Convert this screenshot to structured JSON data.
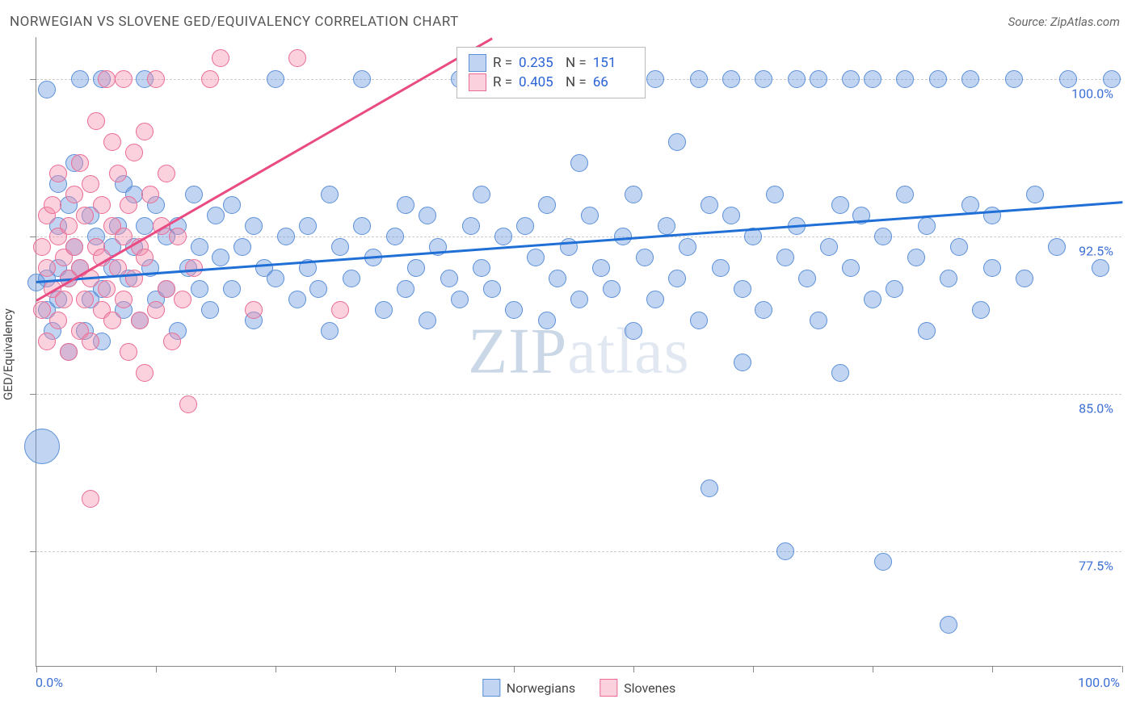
{
  "title": "NORWEGIAN VS SLOVENE GED/EQUIVALENCY CORRELATION CHART",
  "source": "Source: ZipAtlas.com",
  "watermark_a": "ZIP",
  "watermark_b": "atlas",
  "chart": {
    "type": "scatter",
    "xlim": [
      0,
      100
    ],
    "ylim": [
      72,
      102
    ],
    "x_label_min": "0.0%",
    "x_label_max": "100.0%",
    "y_axis_label": "GED/Equivalency",
    "y_ticks": [
      77.5,
      85.0,
      92.5,
      100.0
    ],
    "y_tick_labels": [
      "77.5%",
      "85.0%",
      "92.5%",
      "100.0%"
    ],
    "x_tick_positions": [
      0,
      11,
      22,
      33,
      44,
      55,
      66,
      77,
      88,
      100
    ],
    "grid_color": "#cccccc",
    "background_color": "#ffffff",
    "marker_radius": 11,
    "marker_radius_large": 22,
    "series": [
      {
        "name": "Norwegians",
        "color_fill": "rgba(99,151,224,0.40)",
        "color_stroke": "#5b8fd6",
        "trend_color": "#1f6fd6",
        "trend": {
          "x1": 0,
          "y1": 90.4,
          "x2": 100,
          "y2": 94.2
        },
        "R": "0.235",
        "N": "151",
        "points": [
          [
            0,
            90.3
          ],
          [
            0.5,
            82.5
          ],
          [
            1,
            99.5
          ],
          [
            1,
            90.5
          ],
          [
            1,
            89
          ],
          [
            1.5,
            88
          ],
          [
            2,
            95
          ],
          [
            2,
            91
          ],
          [
            2,
            89.5
          ],
          [
            2,
            93
          ],
          [
            3,
            87
          ],
          [
            3,
            90.5
          ],
          [
            3,
            94
          ],
          [
            3.5,
            92
          ],
          [
            3.5,
            96
          ],
          [
            4,
            100
          ],
          [
            4,
            91
          ],
          [
            4.5,
            88
          ],
          [
            5,
            93.5
          ],
          [
            5,
            89.5
          ],
          [
            5.5,
            92.5
          ],
          [
            6,
            100
          ],
          [
            6,
            90
          ],
          [
            6,
            87.5
          ],
          [
            7,
            92
          ],
          [
            7,
            91
          ],
          [
            7.5,
            93
          ],
          [
            8,
            95
          ],
          [
            8,
            89
          ],
          [
            8.5,
            90.5
          ],
          [
            9,
            94.5
          ],
          [
            9,
            92
          ],
          [
            9.5,
            88.5
          ],
          [
            10,
            93
          ],
          [
            10,
            100
          ],
          [
            10.5,
            91
          ],
          [
            11,
            89.5
          ],
          [
            11,
            94
          ],
          [
            12,
            92.5
          ],
          [
            12,
            90
          ],
          [
            13,
            93
          ],
          [
            13,
            88
          ],
          [
            14,
            91
          ],
          [
            14.5,
            94.5
          ],
          [
            15,
            90
          ],
          [
            15,
            92
          ],
          [
            16,
            89
          ],
          [
            16.5,
            93.5
          ],
          [
            17,
            91.5
          ],
          [
            18,
            90
          ],
          [
            18,
            94
          ],
          [
            19,
            92
          ],
          [
            20,
            88.5
          ],
          [
            20,
            93
          ],
          [
            21,
            91
          ],
          [
            22,
            100
          ],
          [
            22,
            90.5
          ],
          [
            23,
            92.5
          ],
          [
            24,
            89.5
          ],
          [
            25,
            93
          ],
          [
            25,
            91
          ],
          [
            26,
            90
          ],
          [
            27,
            94.5
          ],
          [
            27,
            88
          ],
          [
            28,
            92
          ],
          [
            29,
            90.5
          ],
          [
            30,
            93
          ],
          [
            30,
            100
          ],
          [
            31,
            91.5
          ],
          [
            32,
            89
          ],
          [
            33,
            92.5
          ],
          [
            34,
            90
          ],
          [
            34,
            94
          ],
          [
            35,
            91
          ],
          [
            36,
            88.5
          ],
          [
            36,
            93.5
          ],
          [
            37,
            92
          ],
          [
            38,
            90.5
          ],
          [
            39,
            100
          ],
          [
            39,
            89.5
          ],
          [
            40,
            93
          ],
          [
            41,
            91
          ],
          [
            41,
            94.5
          ],
          [
            42,
            90
          ],
          [
            43,
            92.5
          ],
          [
            44,
            89
          ],
          [
            45,
            93
          ],
          [
            45,
            100
          ],
          [
            46,
            91.5
          ],
          [
            47,
            88.5
          ],
          [
            47,
            94
          ],
          [
            48,
            90.5
          ],
          [
            49,
            92
          ],
          [
            50,
            89.5
          ],
          [
            50,
            96
          ],
          [
            51,
            93.5
          ],
          [
            52,
            91
          ],
          [
            53,
            90
          ],
          [
            53,
            100
          ],
          [
            54,
            92.5
          ],
          [
            55,
            94.5
          ],
          [
            55,
            88
          ],
          [
            56,
            91.5
          ],
          [
            57,
            100
          ],
          [
            57,
            89.5
          ],
          [
            58,
            93
          ],
          [
            59,
            90.5
          ],
          [
            59,
            97
          ],
          [
            60,
            92
          ],
          [
            61,
            100
          ],
          [
            61,
            88.5
          ],
          [
            62,
            94
          ],
          [
            62,
            80.5
          ],
          [
            63,
            91
          ],
          [
            64,
            93.5
          ],
          [
            64,
            100
          ],
          [
            65,
            90
          ],
          [
            65,
            86.5
          ],
          [
            66,
            92.5
          ],
          [
            67,
            100
          ],
          [
            67,
            89
          ],
          [
            68,
            94.5
          ],
          [
            69,
            91.5
          ],
          [
            69,
            77.5
          ],
          [
            70,
            93
          ],
          [
            70,
            100
          ],
          [
            71,
            90.5
          ],
          [
            72,
            88.5
          ],
          [
            72,
            100
          ],
          [
            73,
            92
          ],
          [
            74,
            94
          ],
          [
            74,
            86
          ],
          [
            75,
            91
          ],
          [
            75,
            100
          ],
          [
            76,
            93.5
          ],
          [
            77,
            89.5
          ],
          [
            77,
            100
          ],
          [
            78,
            92.5
          ],
          [
            78,
            77
          ],
          [
            79,
            90
          ],
          [
            80,
            94.5
          ],
          [
            80,
            100
          ],
          [
            81,
            91.5
          ],
          [
            82,
            88
          ],
          [
            82,
            93
          ],
          [
            83,
            100
          ],
          [
            84,
            90.5
          ],
          [
            84,
            74
          ],
          [
            85,
            92
          ],
          [
            86,
            94
          ],
          [
            86,
            100
          ],
          [
            87,
            89
          ],
          [
            88,
            93.5
          ],
          [
            88,
            91
          ],
          [
            90,
            100
          ],
          [
            91,
            90.5
          ],
          [
            92,
            94.5
          ],
          [
            94,
            92
          ],
          [
            95,
            100
          ],
          [
            98,
            91
          ],
          [
            99,
            100
          ]
        ]
      },
      {
        "name": "Slovenes",
        "color_fill": "rgba(245,140,170,0.40)",
        "color_stroke": "#ea6b94",
        "trend_color": "#e94b82",
        "trend": {
          "x1": 0,
          "y1": 89.5,
          "x2": 42,
          "y2": 102
        },
        "R": "0.405",
        "N": "66",
        "points": [
          [
            0.5,
            89
          ],
          [
            0.5,
            92
          ],
          [
            1,
            93.5
          ],
          [
            1,
            87.5
          ],
          [
            1,
            91
          ],
          [
            1.5,
            90
          ],
          [
            1.5,
            94
          ],
          [
            2,
            92.5
          ],
          [
            2,
            88.5
          ],
          [
            2,
            95.5
          ],
          [
            2.5,
            91.5
          ],
          [
            2.5,
            89.5
          ],
          [
            3,
            93
          ],
          [
            3,
            87
          ],
          [
            3,
            90.5
          ],
          [
            3.5,
            94.5
          ],
          [
            3.5,
            92
          ],
          [
            4,
            88
          ],
          [
            4,
            96
          ],
          [
            4,
            91
          ],
          [
            4.5,
            89.5
          ],
          [
            4.5,
            93.5
          ],
          [
            5,
            90.5
          ],
          [
            5,
            95
          ],
          [
            5,
            87.5
          ],
          [
            5.5,
            92
          ],
          [
            5.5,
            98
          ],
          [
            6,
            89
          ],
          [
            6,
            94
          ],
          [
            6,
            91.5
          ],
          [
            6.5,
            100
          ],
          [
            6.5,
            90
          ],
          [
            7,
            93
          ],
          [
            7,
            88.5
          ],
          [
            7,
            97
          ],
          [
            7.5,
            91
          ],
          [
            7.5,
            95.5
          ],
          [
            8,
            89.5
          ],
          [
            8,
            92.5
          ],
          [
            8,
            100
          ],
          [
            8.5,
            94
          ],
          [
            8.5,
            87
          ],
          [
            9,
            90.5
          ],
          [
            9,
            96.5
          ],
          [
            9.5,
            92
          ],
          [
            9.5,
            88.5
          ],
          [
            10,
            97.5
          ],
          [
            10,
            91.5
          ],
          [
            10,
            86
          ],
          [
            10.5,
            94.5
          ],
          [
            11,
            89
          ],
          [
            11,
            100
          ],
          [
            11.5,
            93
          ],
          [
            12,
            90
          ],
          [
            12,
            95.5
          ],
          [
            12.5,
            87.5
          ],
          [
            13,
            92.5
          ],
          [
            13.5,
            89.5
          ],
          [
            14,
            84.5
          ],
          [
            14.5,
            91
          ],
          [
            16,
            100
          ],
          [
            17,
            101
          ],
          [
            20,
            89
          ],
          [
            24,
            101
          ],
          [
            28,
            89
          ],
          [
            5,
            80
          ]
        ]
      }
    ]
  },
  "legend": {
    "series1_label": "Norwegians",
    "series2_label": "Slovenes"
  },
  "stats": {
    "r_label": "R  =",
    "n_label": "N  ="
  }
}
